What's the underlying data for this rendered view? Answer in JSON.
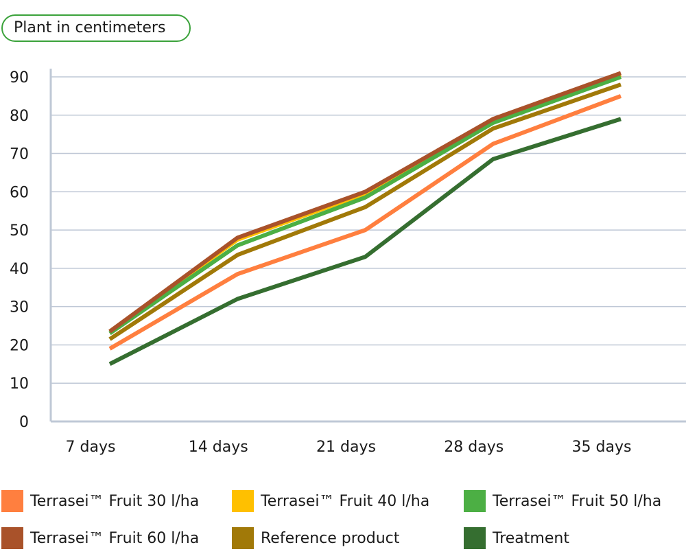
{
  "chart_data": {
    "type": "line",
    "title": "Plant in centimeters",
    "categories": [
      "7 days",
      "14 days",
      "21 days",
      "28 days",
      "35 days"
    ],
    "ylim": [
      0,
      90
    ],
    "yticks": [
      0,
      10,
      20,
      30,
      40,
      50,
      60,
      70,
      80,
      90
    ],
    "grid": true,
    "legend_position": "bottom",
    "series": [
      {
        "name": "Terrasei™ Fruit 30 l/ha",
        "color": "#ff7f3f",
        "values": [
          19,
          38.5,
          50,
          72.5,
          85
        ]
      },
      {
        "name": "Terrasei™ Fruit 40 l/ha",
        "color": "#ffc000",
        "values": [
          23.5,
          47.5,
          59.5,
          78.5,
          90.5
        ]
      },
      {
        "name": "Terrasei™ Fruit 50 l/ha",
        "color": "#4caf44",
        "values": [
          23,
          46,
          58.5,
          78,
          90
        ]
      },
      {
        "name": "Terrasei™ Fruit 60 l/ha",
        "color": "#a9522a",
        "values": [
          23.5,
          48,
          60,
          79,
          91
        ]
      },
      {
        "name": "Reference product",
        "color": "#a17908",
        "values": [
          21.5,
          43.5,
          56,
          76.5,
          88
        ]
      },
      {
        "name": "Treatment",
        "color": "#356e30",
        "values": [
          15,
          32,
          43,
          68.5,
          79
        ]
      }
    ]
  }
}
